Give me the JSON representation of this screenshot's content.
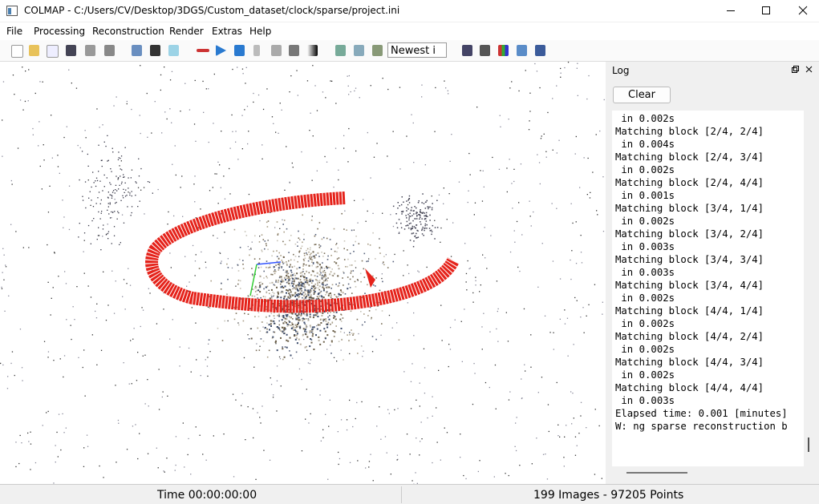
{
  "window": {
    "title": "COLMAP - C:/Users/CV/Desktop/3DGS/Custom_dataset/clock/sparse/project.ini"
  },
  "menu": [
    "File",
    "Processing",
    "Reconstruction",
    "Render",
    "Extras",
    "Help"
  ],
  "toolbar": {
    "sort_combo": "Newest i"
  },
  "log": {
    "title": "Log",
    "clear_button": "Clear",
    "lines": [
      " in 0.002s",
      "Matching block [2/4, 2/4]",
      " in 0.004s",
      "Matching block [2/4, 3/4]",
      " in 0.002s",
      "Matching block [2/4, 4/4]",
      " in 0.001s",
      "Matching block [3/4, 1/4]",
      " in 0.002s",
      "Matching block [3/4, 2/4]",
      " in 0.003s",
      "Matching block [3/4, 3/4]",
      " in 0.003s",
      "Matching block [3/4, 4/4]",
      " in 0.002s",
      "Matching block [4/4, 1/4]",
      " in 0.002s",
      "Matching block [4/4, 2/4]",
      " in 0.002s",
      "Matching block [4/4, 3/4]",
      " in 0.002s",
      "Matching block [4/4, 4/4]",
      " in 0.003s",
      "Elapsed time: 0.001 [minutes]",
      "W: ng sparse reconstruction b"
    ]
  },
  "status": {
    "time": "Time 00:00:00:00",
    "summary": "199 Images - 97205 Points"
  }
}
